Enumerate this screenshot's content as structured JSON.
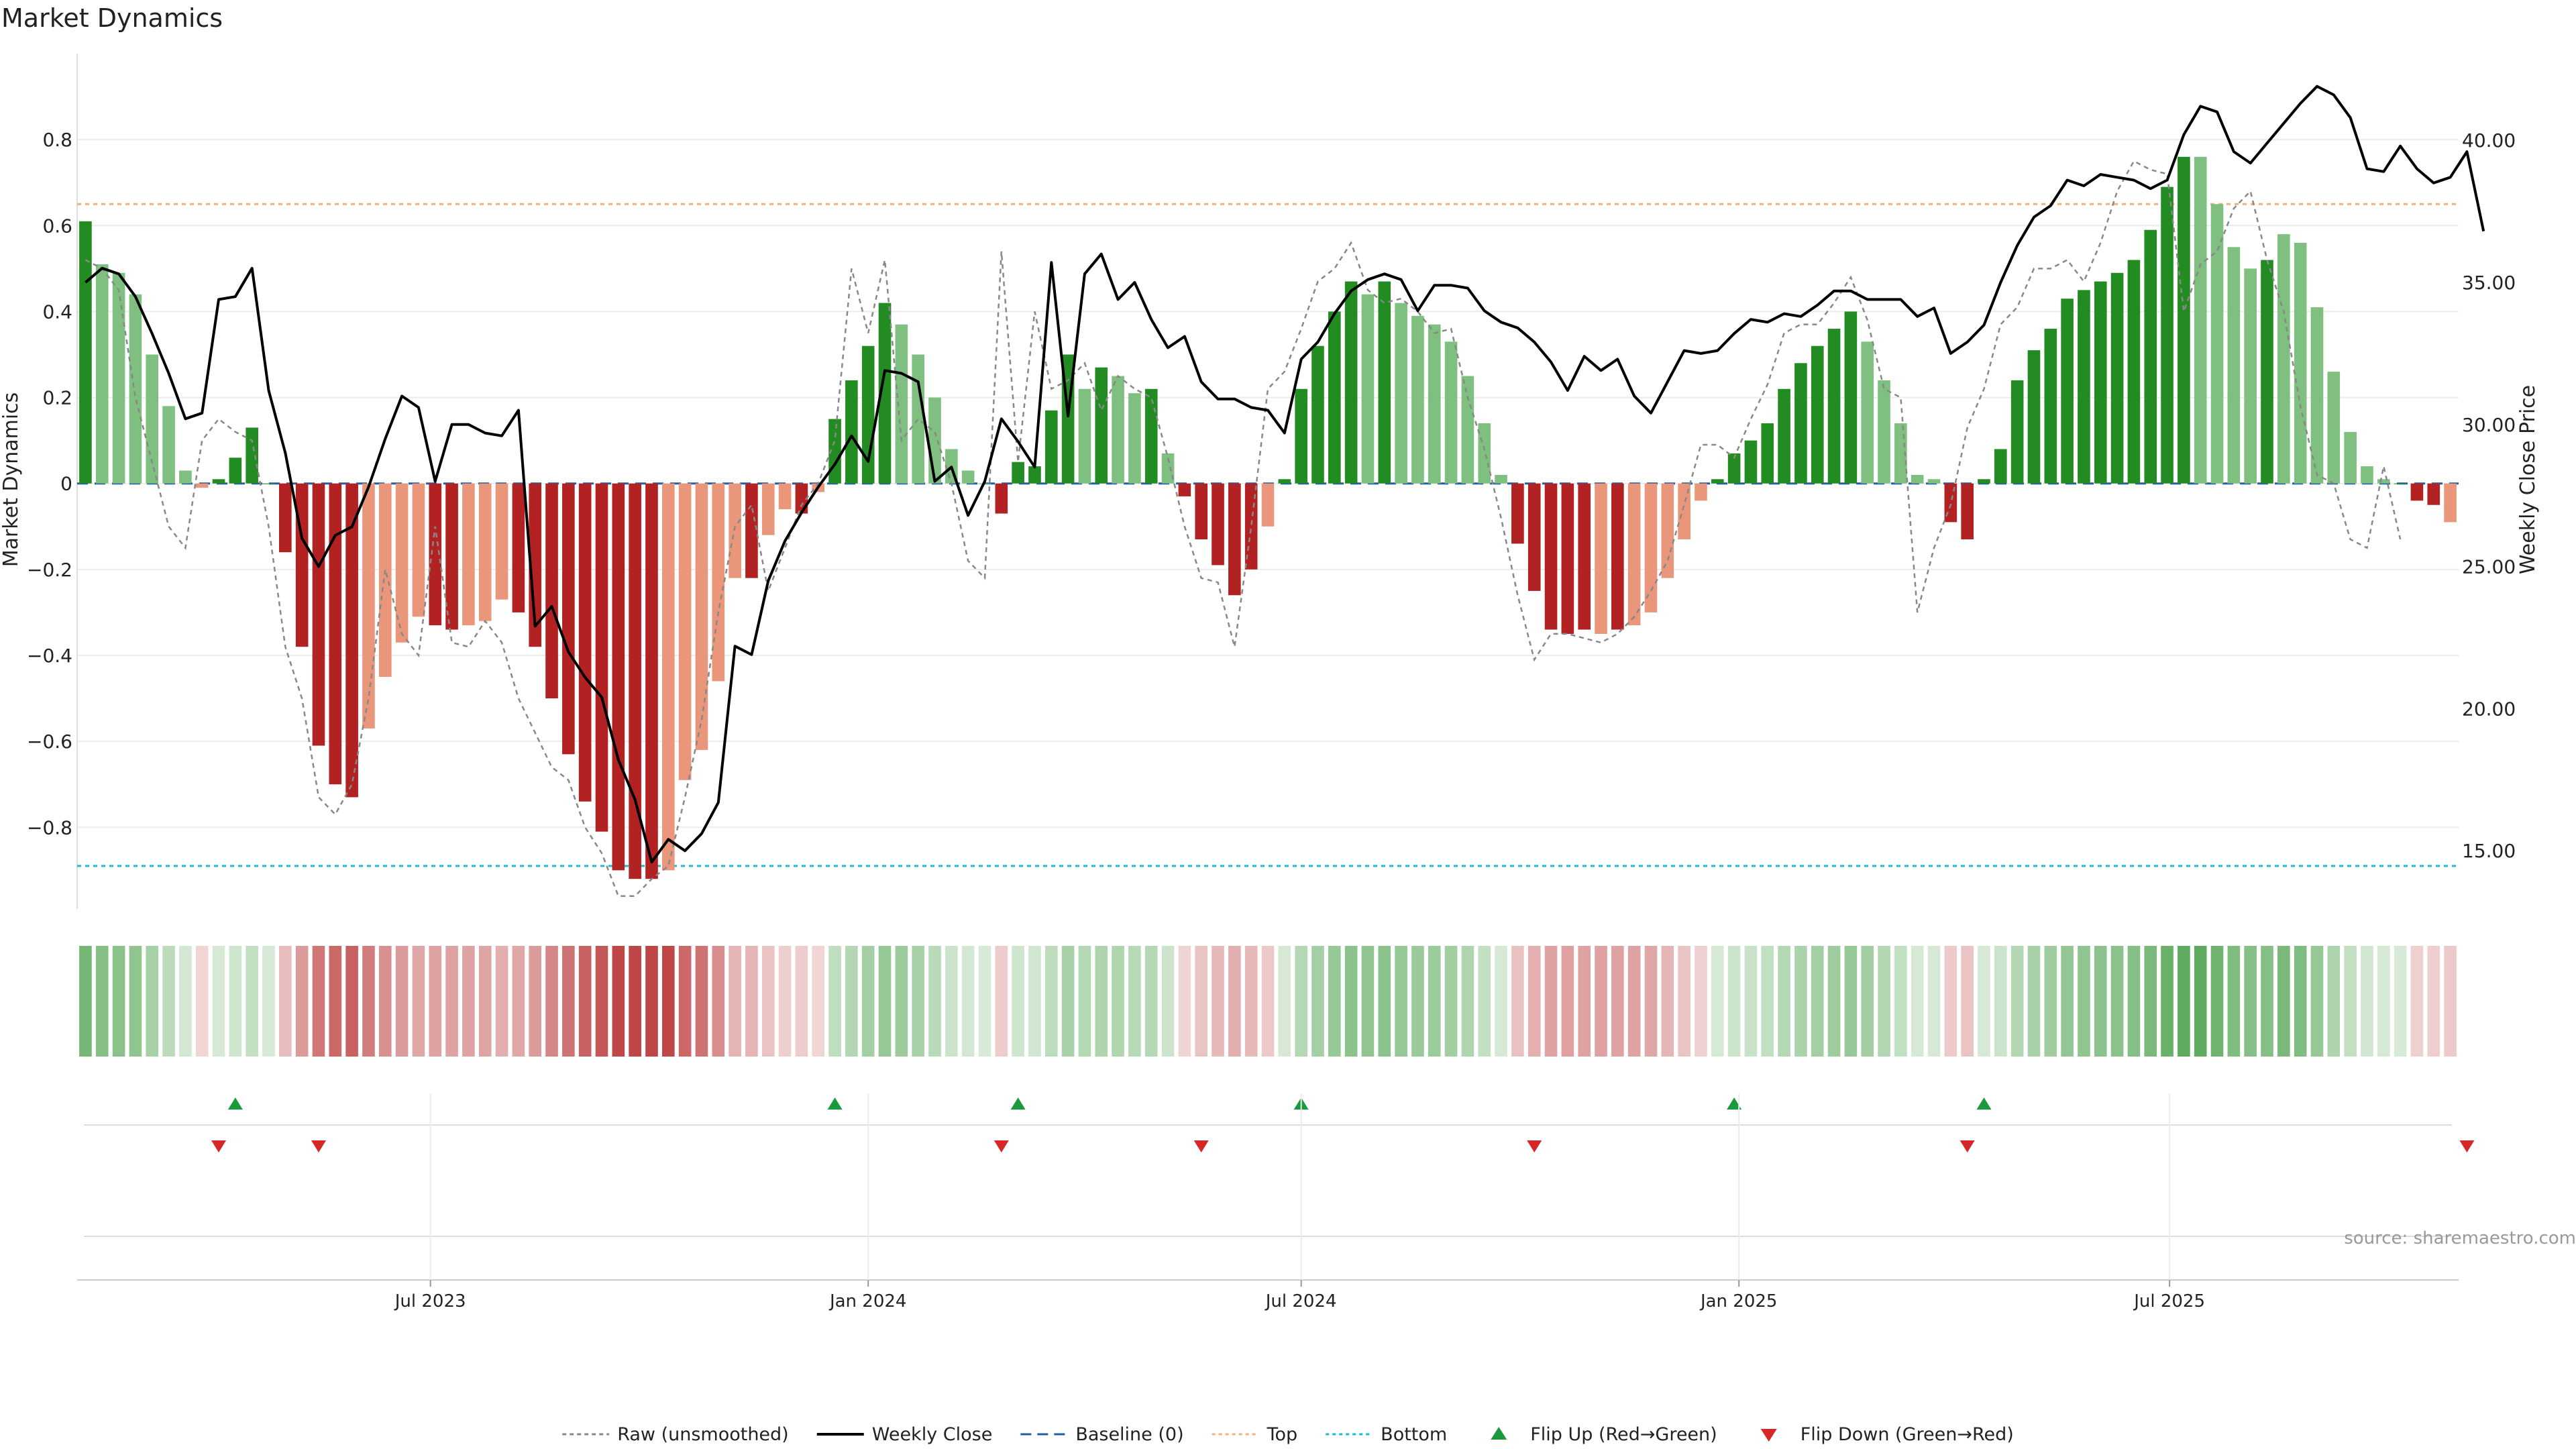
{
  "chart_data": {
    "type": "bar",
    "title": "Market Dynamics",
    "xlabel": "",
    "ylabel": "Market Dynamics",
    "ylabel_right": "Weekly Close Price",
    "source": "source: sharemaestro.com",
    "x_start": "2023-02-06",
    "x_step_days": 7,
    "x_ticks": [
      {
        "date": "2023-07-01",
        "label": "Jul 2023"
      },
      {
        "date": "2024-01-01",
        "label": "Jan 2024"
      },
      {
        "date": "2024-07-01",
        "label": "Jul 2024"
      },
      {
        "date": "2025-01-01",
        "label": "Jan 2025"
      },
      {
        "date": "2025-07-01",
        "label": "Jul 2025"
      }
    ],
    "ylim": [
      -0.99,
      1.0
    ],
    "y_ticks": [
      -0.8,
      -0.6,
      -0.4,
      -0.2,
      0,
      0.2,
      0.4,
      0.6,
      0.8
    ],
    "y_tick_labels": [
      "−0.8",
      "−0.6",
      "−0.4",
      "−0.2",
      "0",
      "0.2",
      "0.4",
      "0.6",
      "0.8"
    ],
    "y2lim": [
      12.95,
      43.05
    ],
    "y2_ticks": [
      15,
      20,
      25,
      30,
      35,
      40
    ],
    "y2_tick_labels": [
      "15.00",
      "20.00",
      "25.00",
      "30.00",
      "35.00",
      "40.00"
    ],
    "top_threshold": 0.65,
    "bottom_threshold": -0.89,
    "grid": true,
    "legend_position": "bottom-center",
    "colors": {
      "strong_up": "#228b22",
      "weak_up": "#7fbf7f",
      "strong_down": "#b22222",
      "weak_down": "#e9967a",
      "close": "#000000",
      "raw": "#888888",
      "baseline": "#1f5fa8",
      "top": "#f0b27a",
      "bottom": "#17becf",
      "flip_up": "#1a9a3c",
      "flip_down": "#d62728"
    },
    "series": [
      {
        "name": "Market Dynamics",
        "values": [
          0.61,
          0.51,
          0.49,
          0.44,
          0.3,
          0.18,
          0.03,
          -0.01,
          0.01,
          0.06,
          0.13,
          0.0,
          -0.16,
          -0.38,
          -0.61,
          -0.7,
          -0.73,
          -0.57,
          -0.45,
          -0.37,
          -0.31,
          -0.33,
          -0.34,
          -0.33,
          -0.32,
          -0.27,
          -0.3,
          -0.38,
          -0.5,
          -0.63,
          -0.74,
          -0.81,
          -0.9,
          -0.92,
          -0.92,
          -0.9,
          -0.69,
          -0.62,
          -0.46,
          -0.22,
          -0.22,
          -0.12,
          -0.06,
          -0.07,
          -0.02,
          0.15,
          0.24,
          0.32,
          0.42,
          0.37,
          0.3,
          0.2,
          0.08,
          0.03,
          0.0,
          -0.07,
          0.05,
          0.04,
          0.17,
          0.3,
          0.22,
          0.27,
          0.25,
          0.21,
          0.22,
          0.07,
          -0.03,
          -0.13,
          -0.19,
          -0.26,
          -0.2,
          -0.1,
          0.01,
          0.22,
          0.32,
          0.4,
          0.47,
          0.44,
          0.47,
          0.42,
          0.39,
          0.37,
          0.33,
          0.25,
          0.14,
          0.02,
          -0.14,
          -0.25,
          -0.34,
          -0.35,
          -0.34,
          -0.35,
          -0.34,
          -0.33,
          -0.3,
          -0.22,
          -0.13,
          -0.04,
          0.01,
          0.07,
          0.1,
          0.14,
          0.22,
          0.28,
          0.32,
          0.36,
          0.4,
          0.33,
          0.24,
          0.14,
          0.02,
          0.01,
          -0.09,
          -0.13,
          0.01,
          0.08,
          0.24,
          0.31,
          0.36,
          0.43,
          0.45,
          0.47,
          0.49,
          0.52,
          0.59,
          0.69,
          0.76,
          0.76,
          0.65,
          0.55,
          0.5,
          0.52,
          0.58,
          0.56,
          0.41,
          0.26,
          0.12,
          0.04,
          0.01,
          0.0,
          -0.04,
          -0.05,
          -0.09
        ],
        "strength": [
          "s",
          "w",
          "w",
          "w",
          "w",
          "w",
          "w",
          "w",
          "s",
          "s",
          "s",
          "s",
          "s",
          "s",
          "s",
          "s",
          "s",
          "w",
          "w",
          "w",
          "w",
          "s",
          "s",
          "w",
          "w",
          "w",
          "s",
          "s",
          "s",
          "s",
          "s",
          "s",
          "s",
          "s",
          "s",
          "w",
          "w",
          "w",
          "w",
          "w",
          "s",
          "w",
          "w",
          "s",
          "w",
          "s",
          "s",
          "s",
          "s",
          "w",
          "w",
          "w",
          "w",
          "w",
          "w",
          "s",
          "s",
          "s",
          "s",
          "s",
          "w",
          "s",
          "w",
          "w",
          "s",
          "w",
          "s",
          "s",
          "s",
          "s",
          "s",
          "w",
          "s",
          "s",
          "s",
          "s",
          "s",
          "w",
          "s",
          "w",
          "w",
          "w",
          "w",
          "w",
          "w",
          "w",
          "s",
          "s",
          "s",
          "s",
          "s",
          "w",
          "s",
          "w",
          "w",
          "w",
          "w",
          "w",
          "s",
          "s",
          "s",
          "s",
          "s",
          "s",
          "s",
          "s",
          "s",
          "w",
          "w",
          "w",
          "w",
          "w",
          "s",
          "s",
          "s",
          "s",
          "s",
          "s",
          "s",
          "s",
          "s",
          "s",
          "s",
          "s",
          "s",
          "s",
          "s",
          "w",
          "w",
          "w",
          "w",
          "s",
          "w",
          "w",
          "w",
          "w",
          "w",
          "w",
          "w",
          "s",
          "s",
          "s"
        ]
      },
      {
        "name": "Weekly Close",
        "values": [
          35.0,
          35.5,
          35.3,
          34.5,
          33.2,
          31.8,
          30.2,
          30.4,
          34.4,
          34.5,
          35.5,
          31.2,
          29.0,
          26.0,
          25.0,
          26.1,
          26.4,
          27.8,
          29.5,
          31.0,
          30.6,
          28.0,
          30.0,
          30.0,
          29.7,
          29.6,
          30.5,
          22.9,
          23.6,
          22.0,
          21.1,
          20.4,
          18.2,
          16.8,
          14.6,
          15.4,
          15.0,
          15.6,
          16.7,
          22.2,
          21.9,
          24.5,
          25.9,
          26.9,
          27.8,
          28.6,
          29.6,
          28.7,
          31.9,
          31.8,
          31.5,
          28.0,
          28.5,
          26.8,
          28.0,
          30.2,
          29.4,
          28.5,
          35.7,
          30.3,
          35.3,
          36.0,
          34.4,
          35.0,
          33.7,
          32.7,
          33.1,
          31.5,
          30.9,
          30.9,
          30.6,
          30.5,
          29.7,
          32.3,
          32.9,
          33.9,
          34.7,
          35.1,
          35.3,
          35.1,
          34.0,
          34.9,
          34.9,
          34.8,
          34.0,
          33.6,
          33.4,
          32.9,
          32.2,
          31.2,
          32.4,
          31.9,
          32.3,
          31.0,
          30.4,
          31.5,
          32.6,
          32.5,
          32.6,
          33.2,
          33.7,
          33.6,
          33.9,
          33.8,
          34.2,
          34.7,
          34.7,
          34.4,
          34.4,
          34.4,
          33.8,
          34.1,
          32.5,
          32.9,
          33.5,
          35.0,
          36.3,
          37.3,
          37.7,
          38.6,
          38.4,
          38.8,
          38.7,
          38.6,
          38.3,
          38.6,
          40.2,
          41.2,
          41.0,
          39.6,
          39.2,
          39.9,
          40.6,
          41.3,
          41.9,
          41.6,
          40.8,
          39.0,
          38.9,
          39.8,
          39.0,
          38.5,
          38.7,
          39.6,
          36.8
        ]
      },
      {
        "name": "Raw (unsmoothed)",
        "values": [
          0.52,
          0.5,
          0.45,
          0.2,
          0.05,
          -0.1,
          -0.15,
          0.1,
          0.15,
          0.12,
          0.1,
          -0.1,
          -0.38,
          -0.5,
          -0.73,
          -0.77,
          -0.7,
          -0.5,
          -0.2,
          -0.35,
          -0.4,
          -0.1,
          -0.37,
          -0.38,
          -0.32,
          -0.37,
          -0.5,
          -0.58,
          -0.66,
          -0.69,
          -0.8,
          -0.86,
          -0.96,
          -0.96,
          -0.92,
          -0.89,
          -0.73,
          -0.55,
          -0.3,
          -0.1,
          -0.05,
          -0.25,
          -0.15,
          -0.05,
          0.0,
          0.1,
          0.5,
          0.35,
          0.52,
          0.1,
          0.15,
          0.12,
          0.0,
          -0.18,
          -0.22,
          0.54,
          0.05,
          0.4,
          0.22,
          0.24,
          0.28,
          0.17,
          0.25,
          0.22,
          0.2,
          0.06,
          -0.1,
          -0.22,
          -0.23,
          -0.38,
          -0.1,
          0.22,
          0.26,
          0.36,
          0.47,
          0.5,
          0.56,
          0.45,
          0.42,
          0.43,
          0.4,
          0.35,
          0.36,
          0.2,
          0.08,
          -0.08,
          -0.26,
          -0.41,
          -0.35,
          -0.35,
          -0.36,
          -0.37,
          -0.35,
          -0.31,
          -0.25,
          -0.18,
          -0.05,
          0.09,
          0.09,
          0.06,
          0.15,
          0.23,
          0.35,
          0.37,
          0.37,
          0.42,
          0.48,
          0.38,
          0.22,
          0.2,
          -0.3,
          -0.15,
          -0.05,
          0.13,
          0.22,
          0.37,
          0.41,
          0.5,
          0.5,
          0.52,
          0.47,
          0.56,
          0.68,
          0.75,
          0.73,
          0.72,
          0.4,
          0.51,
          0.54,
          0.64,
          0.68,
          0.52,
          0.4,
          0.18,
          0.02,
          0.0,
          -0.13,
          -0.15,
          0.04,
          -0.13
        ]
      }
    ],
    "flip_up": [
      "2023-04-10",
      "2023-12-18",
      "2024-03-04",
      "2024-07-01",
      "2024-12-30",
      "2025-04-14"
    ],
    "flip_down": [
      "2023-04-03",
      "2023-05-15",
      "2024-02-26",
      "2024-05-20",
      "2024-10-07",
      "2025-04-07",
      "2025-11-03"
    ],
    "legend": [
      {
        "label": "Raw (unsmoothed)",
        "kind": "raw"
      },
      {
        "label": "Weekly Close",
        "kind": "close"
      },
      {
        "label": "Baseline (0)",
        "kind": "baseline"
      },
      {
        "label": "Top",
        "kind": "top"
      },
      {
        "label": "Bottom",
        "kind": "bottom"
      },
      {
        "label": "Flip Up (Red→Green)",
        "kind": "flip_up"
      },
      {
        "label": "Flip Down (Green→Red)",
        "kind": "flip_down"
      }
    ]
  }
}
